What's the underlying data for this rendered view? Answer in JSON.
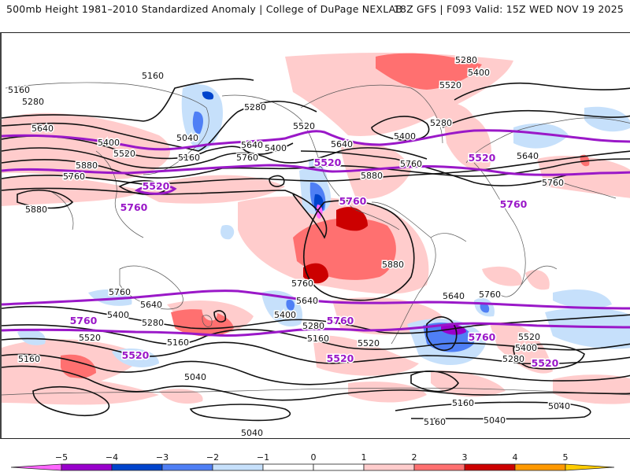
{
  "header": {
    "title": "500mb Height 1981–2010 Standardized Anomaly | College of DuPage NEXLAB",
    "run_info": "18Z GFS | F093 Valid: 15Z WED NOV 19 2025"
  },
  "colors": {
    "contour": "#111111",
    "highlight_contour": "#9a18c8",
    "coast": "#555555"
  },
  "colorbar": {
    "ticks": [
      "-5",
      "-4",
      "-3",
      "-2",
      "-1",
      "0",
      "1",
      "2",
      "3",
      "4",
      "5"
    ],
    "bins": [
      {
        "range": "<-5",
        "color": "#ff66ff"
      },
      {
        "range": "-5 to -4",
        "color": "#9900cc"
      },
      {
        "range": "-4 to -3",
        "color": "#0044cc"
      },
      {
        "range": "-3 to -2",
        "color": "#4f7ff5"
      },
      {
        "range": "-2 to -1",
        "color": "#c6e0fb"
      },
      {
        "range": "-1 to 0",
        "color": "#ffffff"
      },
      {
        "range": "0 to 1",
        "color": "#ffffff"
      },
      {
        "range": "1 to 2",
        "color": "#ffcccc"
      },
      {
        "range": "2 to 3",
        "color": "#ff7070"
      },
      {
        "range": "3 to 4",
        "color": "#cc0000"
      },
      {
        "range": "4 to 5",
        "color": "#ff9900"
      },
      {
        "range": ">5",
        "color": "#ffcc00"
      }
    ]
  },
  "map": {
    "field": "500mb geopotential height (dam contours, m)",
    "contour_labels": [
      {
        "text": "5160",
        "region": "north-pacific-asia"
      },
      {
        "text": "5160",
        "region": "siberia-west"
      },
      {
        "text": "5280",
        "region": "siberia-west"
      },
      {
        "text": "5640",
        "region": "china"
      },
      {
        "text": "5400",
        "region": "japan"
      },
      {
        "text": "5520",
        "region": "japan"
      },
      {
        "text": "5040",
        "region": "kamchatka"
      },
      {
        "text": "5160",
        "region": "kamchatka"
      },
      {
        "text": "5280",
        "region": "aleutians"
      },
      {
        "text": "5640",
        "region": "north-pacific"
      },
      {
        "text": "5400",
        "region": "north-pacific"
      },
      {
        "text": "5760",
        "region": "north-pacific"
      },
      {
        "text": "5880",
        "region": "central-pacific"
      },
      {
        "text": "5760",
        "region": "west-pacific"
      },
      {
        "text": "5880",
        "region": "india"
      },
      {
        "text": "5520",
        "region": "pacific-northwest"
      },
      {
        "text": "5640",
        "region": "central-us"
      },
      {
        "text": "5880",
        "region": "gulf-of-mexico"
      },
      {
        "text": "5760",
        "region": "east-us"
      },
      {
        "text": "5280",
        "region": "labrador"
      },
      {
        "text": "5400",
        "region": "labrador"
      },
      {
        "text": "5280",
        "region": "greenland"
      },
      {
        "text": "5400",
        "region": "greenland"
      },
      {
        "text": "5520",
        "region": "greenland"
      },
      {
        "text": "5640",
        "region": "western-europe"
      },
      {
        "text": "5760",
        "region": "north-africa"
      },
      {
        "text": "5880",
        "region": "south-america"
      },
      {
        "text": "5760",
        "region": "south-indian"
      },
      {
        "text": "5640",
        "region": "south-indian"
      },
      {
        "text": "5400",
        "region": "south-indian"
      },
      {
        "text": "5280",
        "region": "south-indian"
      },
      {
        "text": "5520",
        "region": "south-indian"
      },
      {
        "text": "5160",
        "region": "south-indian"
      },
      {
        "text": "5160",
        "region": "southern-ocean-west"
      },
      {
        "text": "5040",
        "region": "southern-ocean-west"
      },
      {
        "text": "5760",
        "region": "south-pacific"
      },
      {
        "text": "5640",
        "region": "south-pacific"
      },
      {
        "text": "5400",
        "region": "south-pacific"
      },
      {
        "text": "5280",
        "region": "south-pacific"
      },
      {
        "text": "5160",
        "region": "south-pacific"
      },
      {
        "text": "5520",
        "region": "south-pacific-east"
      },
      {
        "text": "5040",
        "region": "antarctica-pacific"
      },
      {
        "text": "5640",
        "region": "south-atlantic"
      },
      {
        "text": "5760",
        "region": "south-atlantic"
      },
      {
        "text": "5520",
        "region": "south-atlantic"
      },
      {
        "text": "5400",
        "region": "south-atlantic"
      },
      {
        "text": "5280",
        "region": "south-atlantic"
      },
      {
        "text": "5160",
        "region": "south-atlantic"
      },
      {
        "text": "5160",
        "region": "antarctica-atlantic"
      },
      {
        "text": "5040",
        "region": "antarctica-atlantic"
      },
      {
        "text": "5040",
        "region": "south-indian-east"
      }
    ],
    "highlight_labels": [
      {
        "text": "5520",
        "region": "japan"
      },
      {
        "text": "5760",
        "region": "japan"
      },
      {
        "text": "5520",
        "region": "north-america"
      },
      {
        "text": "5760",
        "region": "mexico"
      },
      {
        "text": "5520",
        "region": "europe"
      },
      {
        "text": "5760",
        "region": "north-africa"
      },
      {
        "text": "5760",
        "region": "australia"
      },
      {
        "text": "5520",
        "region": "australia"
      },
      {
        "text": "5760",
        "region": "south-pacific"
      },
      {
        "text": "5520",
        "region": "south-pacific"
      },
      {
        "text": "5760",
        "region": "south-atlantic"
      },
      {
        "text": "5520",
        "region": "south-atlantic"
      }
    ]
  }
}
